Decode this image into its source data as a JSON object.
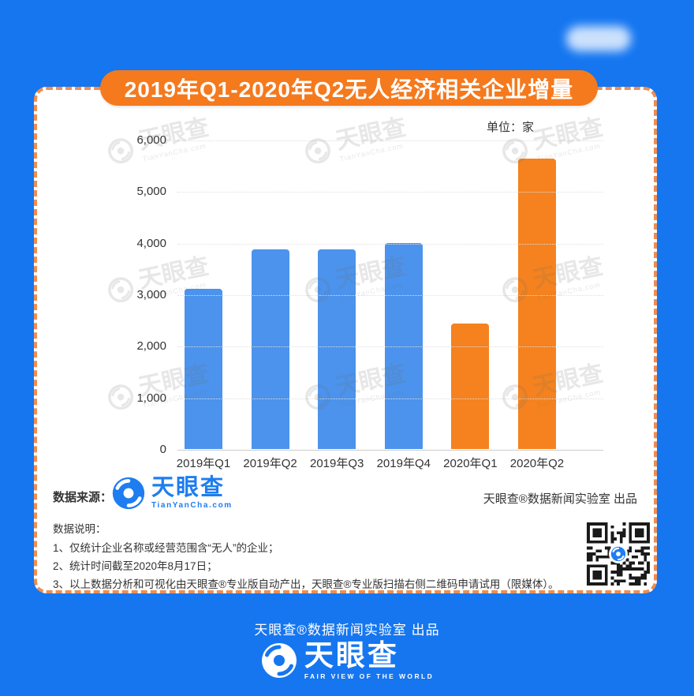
{
  "banner": {
    "title": "2019年Q1-2020年Q2无人经济相关企业增量"
  },
  "chart_data": {
    "type": "bar",
    "title": "2019年Q1-2020年Q2无人经济相关企业增量",
    "unit_label": "单位：家",
    "categories": [
      "2019年Q1",
      "2019年Q2",
      "2019年Q3",
      "2019年Q4",
      "2020年Q1",
      "2020年Q2"
    ],
    "values": [
      3100,
      3880,
      3880,
      4000,
      2440,
      5630
    ],
    "bar_colors": [
      "#4B93EC",
      "#4B93EC",
      "#4B93EC",
      "#4B93EC",
      "#F5821E",
      "#F5821E"
    ],
    "ylim": [
      0,
      6000
    ],
    "y_ticks": [
      0,
      1000,
      2000,
      3000,
      4000,
      5000,
      6000
    ],
    "xlabel": "",
    "ylabel": "",
    "grid": "horizontal-dotted",
    "legend": "none"
  },
  "source_row": {
    "label": "数据来源：",
    "logo": {
      "name": "天眼查",
      "domain": "TianYanCha.com"
    },
    "credit": "天眼查®数据新闻实验室 出品"
  },
  "notes": {
    "heading": "数据说明：",
    "items": [
      "1、仅统计企业名称或经营范围含“无人”的企业；",
      "2、统计时间截至2020年8月17日；",
      "3、以上数据分析和可视化由天眼查®专业版自动产出，天眼查®专业版扫描右侧二维码申请试用（限媒体）。"
    ]
  },
  "footer": {
    "credit": "天眼查®数据新闻实验室 出品",
    "logo_name": "天眼查",
    "logo_tagline": "FAIR VIEW OF THE WORLD"
  },
  "watermark": {
    "text": "天眼查",
    "subtext": "TianYanCha.com"
  },
  "icons": {
    "logo_swirl": "tianyancha-swirl-icon",
    "qr": "qr-code"
  },
  "colors": {
    "background": "#1576F0",
    "accent_orange": "#F5791D",
    "dashed_border": "#EE8E52",
    "bar_blue": "#4B93EC",
    "bar_orange": "#F5821E",
    "logo_blue": "#1E7DF0"
  }
}
